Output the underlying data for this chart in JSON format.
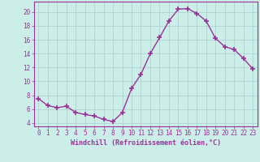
{
  "x": [
    0,
    1,
    2,
    3,
    4,
    5,
    6,
    7,
    8,
    9,
    10,
    11,
    12,
    13,
    14,
    15,
    16,
    17,
    18,
    19,
    20,
    21,
    22,
    23
  ],
  "y": [
    7.5,
    6.5,
    6.2,
    6.4,
    5.5,
    5.2,
    5.0,
    4.5,
    4.2,
    5.5,
    9.0,
    11.0,
    14.0,
    16.3,
    18.7,
    20.4,
    20.5,
    19.8,
    18.7,
    16.2,
    15.0,
    14.6,
    13.3,
    11.8
  ],
  "line_color": "#993399",
  "marker": "+",
  "marker_size": 4,
  "line_width": 1.0,
  "bg_color": "#cceee8",
  "grid_color": "#aacccc",
  "xlabel": "Windchill (Refroidissement éolien,°C)",
  "xlabel_fontsize": 6.0,
  "xlim": [
    -0.5,
    23.5
  ],
  "ylim": [
    3.5,
    21.5
  ],
  "yticks": [
    4,
    6,
    8,
    10,
    12,
    14,
    16,
    18,
    20
  ],
  "xtick_labels": [
    "0",
    "1",
    "2",
    "3",
    "4",
    "5",
    "6",
    "7",
    "8",
    "9",
    "10",
    "11",
    "12",
    "13",
    "14",
    "15",
    "16",
    "17",
    "18",
    "19",
    "20",
    "21",
    "22",
    "23"
  ],
  "tick_fontsize": 5.5,
  "tick_color": "#993399",
  "ylabel_fontsize": 6.0
}
